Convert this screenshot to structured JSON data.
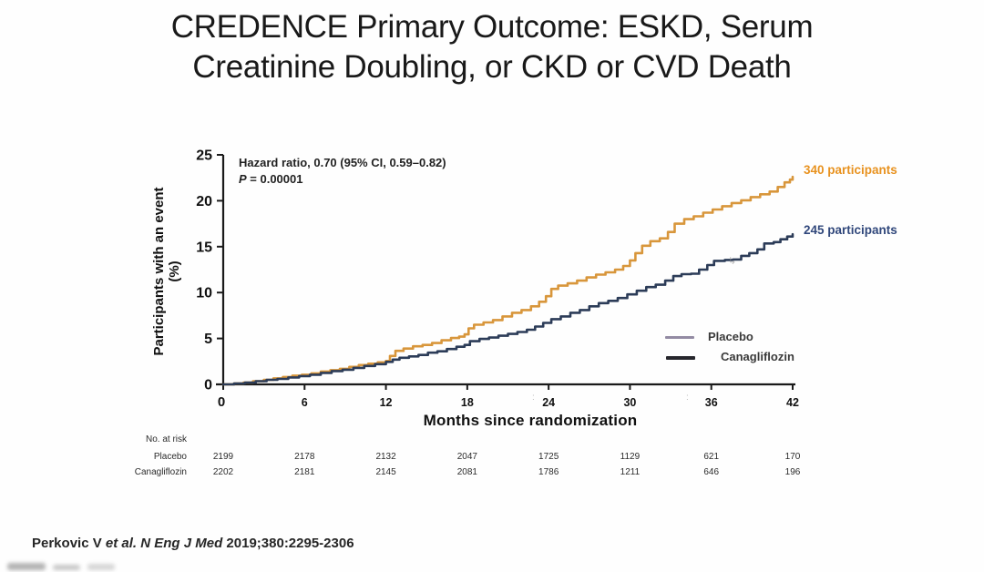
{
  "title": {
    "line1": "CREDENCE Primary Outcome: ESKD, Serum",
    "line2": "Creatinine Doubling, or CKD or CVD Death"
  },
  "annotation": {
    "hazard_ratio": "Hazard ratio, 0.70 (95% CI, 0.59–0.82)",
    "p_label": "P",
    "p_rest": " = 0.00001"
  },
  "curve_end_labels": {
    "placebo": "340 participants",
    "canagliflozin": "245 participants",
    "placebo_color": "#E8921F",
    "canagliflozin_color": "#30477B"
  },
  "legend": [
    {
      "name": "Placebo",
      "swatch_color": "#938BA3"
    },
    {
      "name": "Canagliflozin",
      "swatch_color": "#26262C"
    }
  ],
  "risk_table": {
    "heading": "No. at risk",
    "rows": [
      {
        "label": "Placebo",
        "values": [
          "2199",
          "2178",
          "2132",
          "2047",
          "1725",
          "1129",
          "621",
          "170"
        ]
      },
      {
        "label": "Canagliflozin",
        "values": [
          "2202",
          "2181",
          "2145",
          "2081",
          "1786",
          "1211",
          "646",
          "196"
        ]
      }
    ]
  },
  "citation": {
    "part1": "Perkovic V ",
    "part2_italic": "et al. N Eng J Med ",
    "part3": "2019;380:2295-2306"
  },
  "artifacts": {
    "colon1": ":",
    "colon2": ":",
    "cursor": "↳"
  },
  "chart_data": {
    "type": "line",
    "title": "",
    "xlabel": "Months since randomization",
    "ylabel": "Participants with an event (%)",
    "ylabel_line1": "Participants with an event",
    "ylabel_line2": "(%)",
    "xlim": [
      0,
      42
    ],
    "ylim": [
      0,
      25
    ],
    "xticks": [
      0,
      6,
      12,
      18,
      24,
      30,
      36,
      42
    ],
    "yticks": [
      0,
      5,
      10,
      15,
      20,
      25
    ],
    "grid": false,
    "legend_position": "inside-right",
    "axis_color": "#1a1a1a",
    "series": [
      {
        "name": "Placebo",
        "color": "#D8963B",
        "end_label": "340 participants",
        "points": [
          [
            0,
            0
          ],
          [
            0.8,
            0.1
          ],
          [
            1.5,
            0.2
          ],
          [
            2.2,
            0.35
          ],
          [
            3,
            0.5
          ],
          [
            3.7,
            0.65
          ],
          [
            4.4,
            0.8
          ],
          [
            5.1,
            0.95
          ],
          [
            5.8,
            1.05
          ],
          [
            6.5,
            1.2
          ],
          [
            7.2,
            1.4
          ],
          [
            7.9,
            1.55
          ],
          [
            8.6,
            1.7
          ],
          [
            9.3,
            1.9
          ],
          [
            10,
            2.1
          ],
          [
            10.7,
            2.25
          ],
          [
            11.4,
            2.4
          ],
          [
            12,
            2.55
          ],
          [
            12.3,
            3.1
          ],
          [
            12.7,
            3.65
          ],
          [
            13.3,
            3.9
          ],
          [
            14,
            4.15
          ],
          [
            14.7,
            4.3
          ],
          [
            15.4,
            4.5
          ],
          [
            16.1,
            4.8
          ],
          [
            16.8,
            5.05
          ],
          [
            17.4,
            5.2
          ],
          [
            17.8,
            5.45
          ],
          [
            18.1,
            6.1
          ],
          [
            18.5,
            6.5
          ],
          [
            19.2,
            6.75
          ],
          [
            19.9,
            7.0
          ],
          [
            20.6,
            7.4
          ],
          [
            21.3,
            7.8
          ],
          [
            22,
            8.1
          ],
          [
            22.7,
            8.5
          ],
          [
            23.3,
            9.0
          ],
          [
            23.8,
            9.6
          ],
          [
            24.2,
            10.4
          ],
          [
            24.7,
            10.75
          ],
          [
            25.4,
            11.0
          ],
          [
            26.1,
            11.3
          ],
          [
            26.8,
            11.65
          ],
          [
            27.5,
            11.95
          ],
          [
            28.2,
            12.2
          ],
          [
            28.9,
            12.5
          ],
          [
            29.5,
            12.9
          ],
          [
            30,
            13.5
          ],
          [
            30.4,
            14.3
          ],
          [
            30.9,
            15.1
          ],
          [
            31.5,
            15.6
          ],
          [
            32.2,
            15.9
          ],
          [
            32.8,
            16.6
          ],
          [
            33.3,
            17.5
          ],
          [
            34,
            18.0
          ],
          [
            34.7,
            18.3
          ],
          [
            35.4,
            18.7
          ],
          [
            36.1,
            19.05
          ],
          [
            36.8,
            19.4
          ],
          [
            37.5,
            19.75
          ],
          [
            38.2,
            20.05
          ],
          [
            38.9,
            20.4
          ],
          [
            39.6,
            20.7
          ],
          [
            40.3,
            21.0
          ],
          [
            40.9,
            21.5
          ],
          [
            41.4,
            22.0
          ],
          [
            41.8,
            22.3
          ],
          [
            42,
            22.6
          ]
        ]
      },
      {
        "name": "Canagliflozin",
        "color": "#2C3C58",
        "end_label": "245 participants",
        "points": [
          [
            0,
            0
          ],
          [
            0.8,
            0.1
          ],
          [
            1.6,
            0.2
          ],
          [
            2.4,
            0.35
          ],
          [
            3.2,
            0.5
          ],
          [
            4,
            0.6
          ],
          [
            4.8,
            0.75
          ],
          [
            5.6,
            0.9
          ],
          [
            6.4,
            1.05
          ],
          [
            7.2,
            1.25
          ],
          [
            8,
            1.45
          ],
          [
            8.8,
            1.6
          ],
          [
            9.6,
            1.8
          ],
          [
            10.4,
            2.0
          ],
          [
            11.2,
            2.2
          ],
          [
            12,
            2.45
          ],
          [
            12.5,
            2.7
          ],
          [
            13,
            2.9
          ],
          [
            13.7,
            3.05
          ],
          [
            14.4,
            3.2
          ],
          [
            15.1,
            3.45
          ],
          [
            15.8,
            3.6
          ],
          [
            16.5,
            3.85
          ],
          [
            17.2,
            4.1
          ],
          [
            17.8,
            4.3
          ],
          [
            18.2,
            4.7
          ],
          [
            18.9,
            4.95
          ],
          [
            19.6,
            5.1
          ],
          [
            20.3,
            5.3
          ],
          [
            21,
            5.5
          ],
          [
            21.7,
            5.7
          ],
          [
            22.4,
            5.95
          ],
          [
            23,
            6.3
          ],
          [
            23.6,
            6.7
          ],
          [
            24.2,
            7.1
          ],
          [
            24.9,
            7.4
          ],
          [
            25.6,
            7.8
          ],
          [
            26.3,
            8.1
          ],
          [
            27,
            8.5
          ],
          [
            27.7,
            8.85
          ],
          [
            28.4,
            9.1
          ],
          [
            29.1,
            9.4
          ],
          [
            29.8,
            9.8
          ],
          [
            30.5,
            10.2
          ],
          [
            31.2,
            10.6
          ],
          [
            31.9,
            10.85
          ],
          [
            32.6,
            11.3
          ],
          [
            33.2,
            11.8
          ],
          [
            33.8,
            12.0
          ],
          [
            34.5,
            12.05
          ],
          [
            35.1,
            12.5
          ],
          [
            35.7,
            13.0
          ],
          [
            36.2,
            13.45
          ],
          [
            37,
            13.55
          ],
          [
            37.6,
            13.6
          ],
          [
            38.2,
            14.0
          ],
          [
            38.8,
            14.3
          ],
          [
            39.4,
            14.7
          ],
          [
            39.9,
            15.35
          ],
          [
            40.6,
            15.5
          ],
          [
            41.1,
            15.8
          ],
          [
            41.6,
            16.1
          ],
          [
            42,
            16.35
          ]
        ]
      }
    ]
  }
}
